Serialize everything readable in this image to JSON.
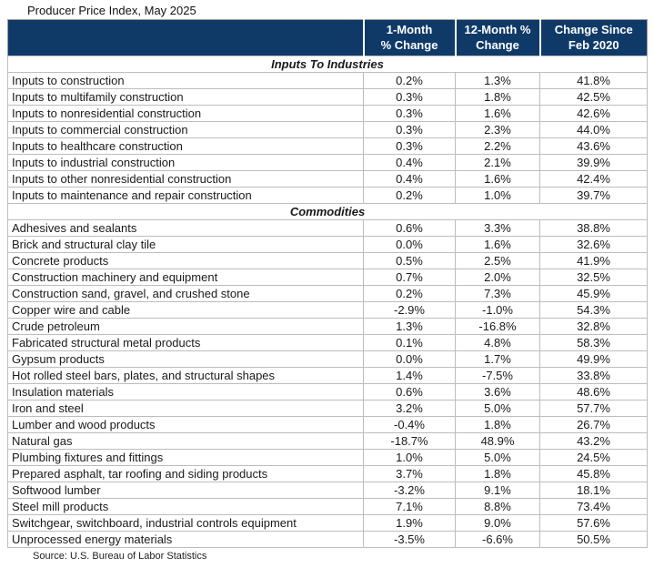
{
  "title": "Producer Price Index, May 2025",
  "source_note": "Source: U.S. Bureau of Labor Statistics",
  "colors": {
    "header_bg": "#0f3a68",
    "header_text": "#ffffff",
    "grid": "#bdbdbd",
    "text": "#1a1a1a"
  },
  "table": {
    "col_headers": [
      "1-Month\n% Change",
      "12-Month %\nChange",
      "Change Since\nFeb 2020"
    ]
  },
  "chart_data": {
    "type": "table",
    "title": "Producer Price Index, May 2025",
    "columns": [
      "1-Month % Change",
      "12-Month % Change",
      "Change Since Feb 2020"
    ],
    "units": "percent",
    "source": "Source: U.S. Bureau of Labor Statistics",
    "sections": [
      {
        "name": "Inputs To Industries",
        "rows": [
          [
            "Inputs to construction",
            0.2,
            1.3,
            41.8
          ],
          [
            "Inputs to multifamily construction",
            0.3,
            1.8,
            42.5
          ],
          [
            "Inputs to nonresidential construction",
            0.3,
            1.6,
            42.6
          ],
          [
            "Inputs to commercial construction",
            0.3,
            2.3,
            44.0
          ],
          [
            "Inputs to healthcare construction",
            0.3,
            2.2,
            43.6
          ],
          [
            "Inputs to industrial construction",
            0.4,
            2.1,
            39.9
          ],
          [
            "Inputs to other nonresidential construction",
            0.4,
            1.6,
            42.4
          ],
          [
            "Inputs to maintenance and repair construction",
            0.2,
            1.0,
            39.7
          ]
        ]
      },
      {
        "name": "Commodities",
        "rows": [
          [
            "Adhesives and sealants",
            0.6,
            3.3,
            38.8
          ],
          [
            "Brick and structural clay tile",
            0.0,
            1.6,
            32.6
          ],
          [
            "Concrete products",
            0.5,
            2.5,
            41.9
          ],
          [
            "Construction machinery and equipment",
            0.7,
            2.0,
            32.5
          ],
          [
            "Construction sand, gravel, and crushed stone",
            0.2,
            7.3,
            45.9
          ],
          [
            "Copper wire and cable",
            -2.9,
            -1.0,
            54.3
          ],
          [
            "Crude petroleum",
            1.3,
            -16.8,
            32.8
          ],
          [
            "Fabricated structural metal products",
            0.1,
            4.8,
            58.3
          ],
          [
            "Gypsum products",
            0.0,
            1.7,
            49.9
          ],
          [
            "Hot rolled steel bars, plates, and structural shapes",
            1.4,
            -7.5,
            33.8
          ],
          [
            "Insulation materials",
            0.6,
            3.6,
            48.6
          ],
          [
            "Iron and steel",
            3.2,
            5.0,
            57.7
          ],
          [
            "Lumber and wood products",
            -0.4,
            1.8,
            26.7
          ],
          [
            "Natural gas",
            -18.7,
            48.9,
            43.2
          ],
          [
            "Plumbing fixtures and fittings",
            1.0,
            5.0,
            24.5
          ],
          [
            "Prepared asphalt, tar roofing and siding products",
            3.7,
            1.8,
            45.8
          ],
          [
            "Softwood lumber",
            -3.2,
            9.1,
            18.1
          ],
          [
            "Steel mill products",
            7.1,
            8.8,
            73.4
          ],
          [
            "Switchgear, switchboard, industrial controls equipment",
            1.9,
            9.0,
            57.6
          ],
          [
            "Unprocessed energy materials",
            -3.5,
            -6.6,
            50.5
          ]
        ]
      }
    ]
  }
}
